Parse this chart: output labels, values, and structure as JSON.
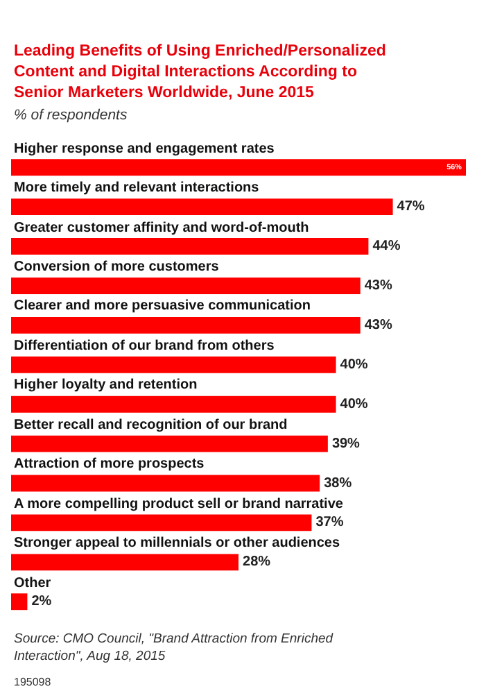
{
  "chart_data": {
    "type": "bar",
    "orientation": "horizontal",
    "title": "Leading Benefits of Using Enriched/Personalized Content and Digital Interactions According to Senior Marketers Worldwide, June 2015",
    "subtitle": "% of respondents",
    "categories": [
      "Higher response and engagement rates",
      "More timely and relevant interactions",
      "Greater customer affinity and word-of-mouth",
      "Conversion of more customers",
      "Clearer and more persuasive communication",
      "Differentiation of our brand from others",
      "Higher loyalty and retention",
      "Better recall and recognition of our brand",
      "Attraction of more prospects",
      "A more compelling product sell or brand narrative",
      "Stronger appeal to millennials or other audiences",
      "Other"
    ],
    "values": [
      56,
      47,
      44,
      43,
      43,
      40,
      40,
      39,
      38,
      37,
      28,
      2
    ],
    "value_labels": [
      "56%",
      "47%",
      "44%",
      "43%",
      "43%",
      "40%",
      "40%",
      "39%",
      "38%",
      "37%",
      "28%",
      "2%"
    ],
    "color": "#ff0000",
    "annotations": [
      "Source: CMO Council, \"Brand Attraction from Enriched Interaction\", Aug 18, 2015",
      "195098"
    ],
    "data_labels": true
  }
}
